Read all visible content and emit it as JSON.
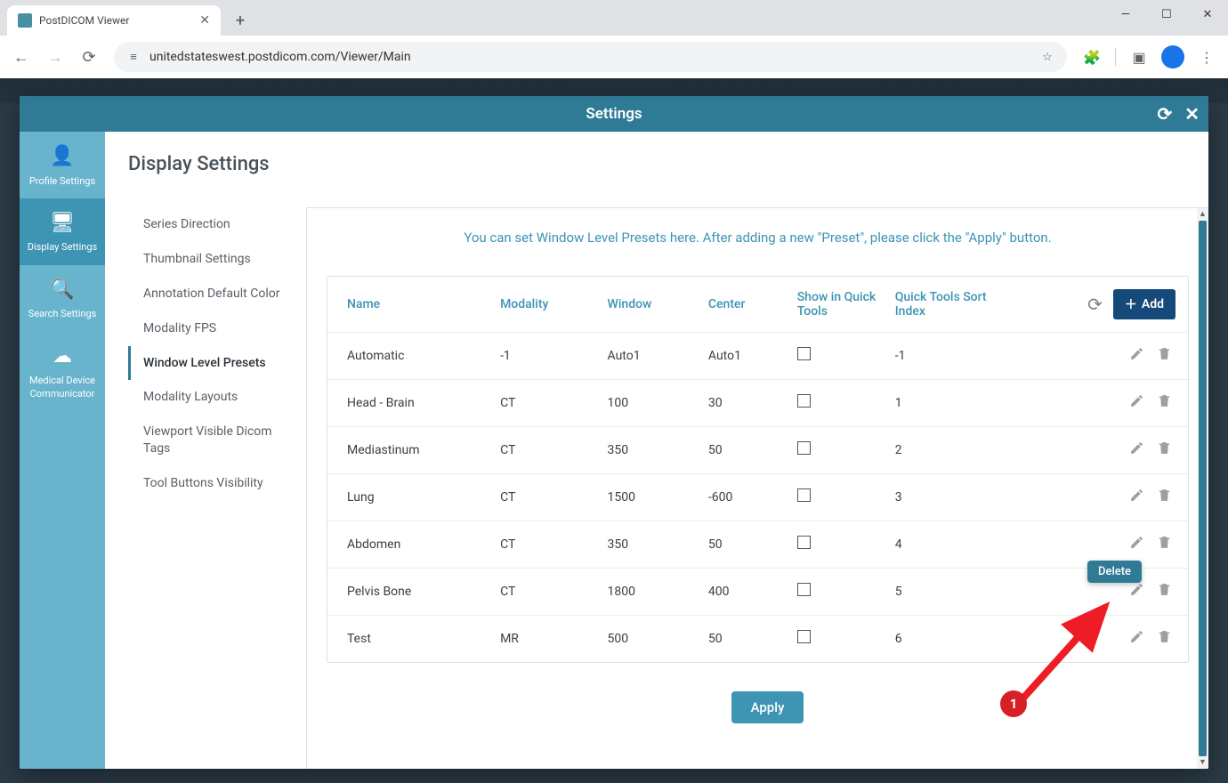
{
  "browser": {
    "tab_title": "PostDICOM Viewer",
    "url": "unitedstateswest.postdicom.com/Viewer/Main",
    "new_tab": "+",
    "minimize": "—",
    "maximize": "☐",
    "close": "✕",
    "back": "←",
    "forward": "→",
    "reload": "⟳",
    "star": "☆",
    "ext": "🧩",
    "panel": "▣",
    "menu": "⋮",
    "site_lock": "≡"
  },
  "modal": {
    "title": "Settings",
    "reload_icon": "⟳",
    "close_icon": "✕"
  },
  "icon_sidebar": [
    {
      "icon": "👤",
      "label": "Profile Settings",
      "active": false
    },
    {
      "icon": "🖥",
      "label": "Display Settings",
      "active": true
    },
    {
      "icon": "🔍",
      "label": "Search Settings",
      "active": false
    },
    {
      "icon": "☁",
      "label": "Medical Device Communicator",
      "active": false
    }
  ],
  "page_title": "Display Settings",
  "sub_nav": [
    {
      "label": "Series Direction",
      "active": false
    },
    {
      "label": "Thumbnail Settings",
      "active": false
    },
    {
      "label": "Annotation Default Color",
      "active": false
    },
    {
      "label": "Modality FPS",
      "active": false
    },
    {
      "label": "Window Level Presets",
      "active": true
    },
    {
      "label": "Modality Layouts",
      "active": false
    },
    {
      "label": "Viewport Visible Dicom Tags",
      "active": false
    },
    {
      "label": "Tool Buttons Visibility",
      "active": false
    }
  ],
  "info_text": "You can set Window Level Presets here. After adding a new \"Preset\", please click the \"Apply\" button.",
  "table": {
    "headers": {
      "name": "Name",
      "modality": "Modality",
      "window": "Window",
      "center": "Center",
      "show": "Show in Quick Tools",
      "sort": "Quick Tools Sort Index"
    },
    "add_label": "Add",
    "refresh": "⟳",
    "rows": [
      {
        "name": "Automatic",
        "modality": "-1",
        "window": "Auto1",
        "center": "Auto1",
        "show": false,
        "sort": "-1"
      },
      {
        "name": "Head - Brain",
        "modality": "CT",
        "window": "100",
        "center": "30",
        "show": false,
        "sort": "1"
      },
      {
        "name": "Mediastinum",
        "modality": "CT",
        "window": "350",
        "center": "50",
        "show": false,
        "sort": "2"
      },
      {
        "name": "Lung",
        "modality": "CT",
        "window": "1500",
        "center": "-600",
        "show": false,
        "sort": "3"
      },
      {
        "name": "Abdomen",
        "modality": "CT",
        "window": "350",
        "center": "50",
        "show": false,
        "sort": "4"
      },
      {
        "name": "Pelvis Bone",
        "modality": "CT",
        "window": "1800",
        "center": "400",
        "show": false,
        "sort": "5"
      },
      {
        "name": "Test",
        "modality": "MR",
        "window": "500",
        "center": "50",
        "show": false,
        "sort": "6"
      }
    ]
  },
  "apply_label": "Apply",
  "tooltip_text": "Delete",
  "annotation_badge": "1",
  "colors": {
    "teal_dark": "#2f7a94",
    "teal_light": "#68b4cd",
    "teal_mid": "#3d94b3",
    "navy": "#14497a",
    "red": "#d62026",
    "arrow_red": "#ee1c25"
  }
}
